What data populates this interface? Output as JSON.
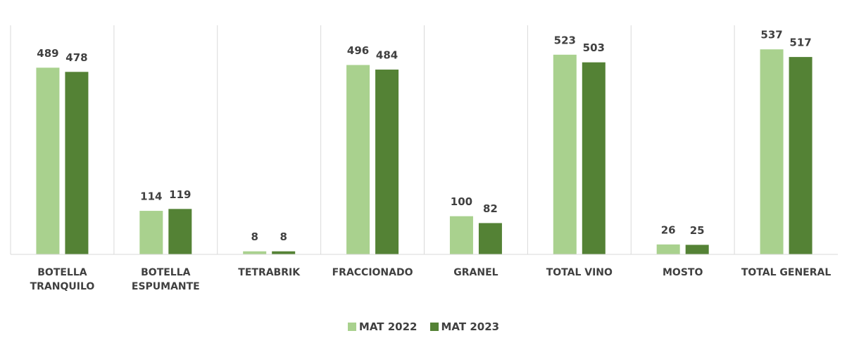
{
  "chart_data": {
    "type": "bar",
    "categories": [
      "BOTELLA TRANQUILO",
      "BOTELLA ESPUMANTE",
      "TETRABRIK",
      "FRACCIONADO",
      "GRANEL",
      "TOTAL VINO",
      "MOSTO",
      "TOTAL GENERAL"
    ],
    "series": [
      {
        "name": "MAT 2022",
        "color": "#a9d18e",
        "values": [
          489,
          114,
          8,
          496,
          100,
          523,
          26,
          537
        ]
      },
      {
        "name": "MAT 2023",
        "color": "#548235",
        "values": [
          478,
          119,
          8,
          484,
          82,
          503,
          25,
          517
        ]
      }
    ],
    "ylim": [
      0,
      600
    ],
    "legend": "bottom"
  }
}
